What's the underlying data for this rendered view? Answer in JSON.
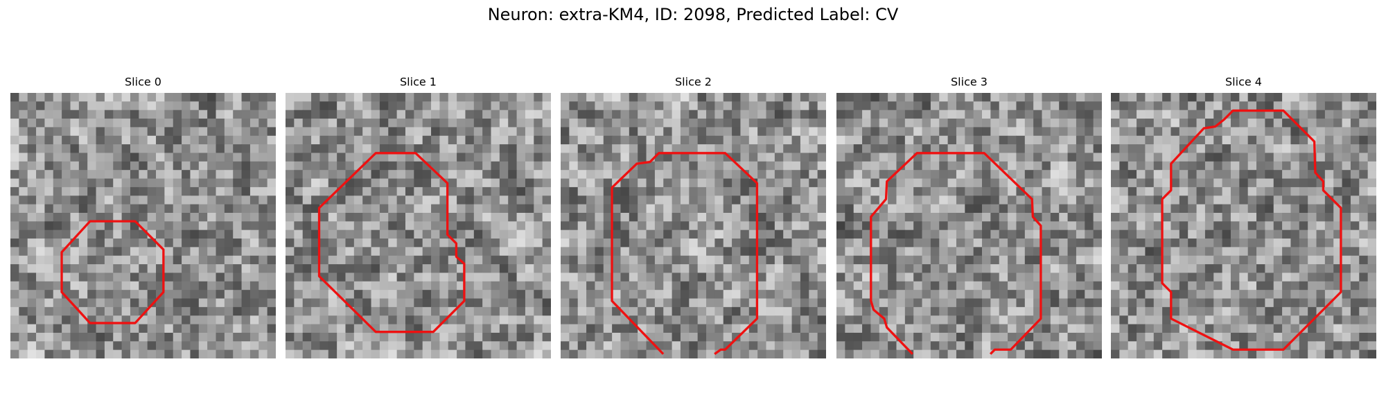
{
  "title": "Neuron: extra-KM4, ID: 2098, Predicted Label: CV",
  "panels": [
    {
      "title": "Slice 0"
    },
    {
      "title": "Slice 1"
    },
    {
      "title": "Slice 2"
    },
    {
      "title": "Slice 3"
    },
    {
      "title": "Slice 4"
    }
  ]
}
